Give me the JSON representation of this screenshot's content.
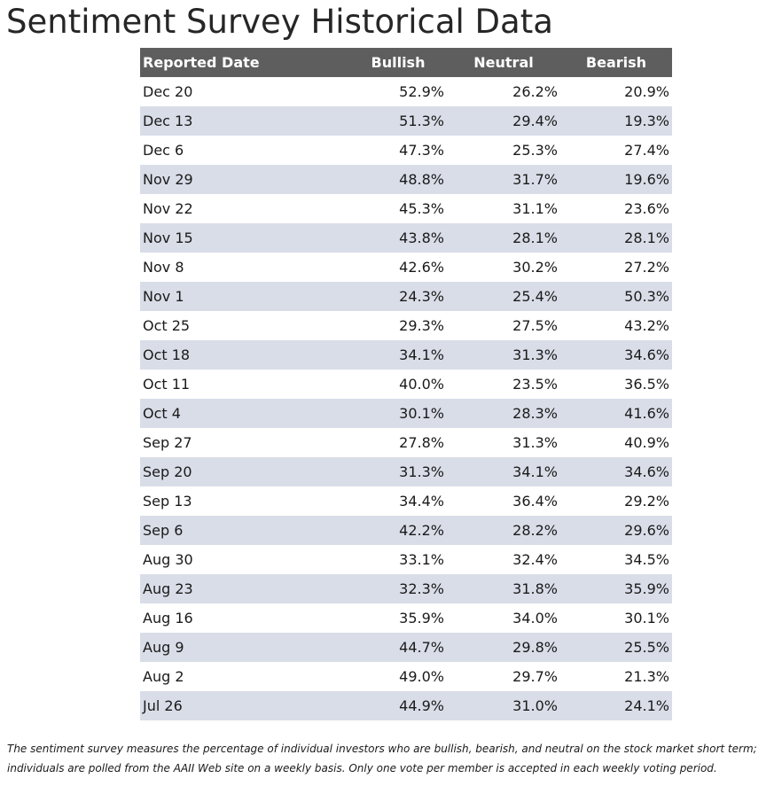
{
  "title": "Sentiment Survey Historical Data",
  "table": {
    "headers": [
      "Reported Date",
      "Bullish",
      "Neutral",
      "Bearish"
    ],
    "rows": [
      [
        "Dec 20",
        "52.9%",
        "26.2%",
        "20.9%"
      ],
      [
        "Dec 13",
        "51.3%",
        "29.4%",
        "19.3%"
      ],
      [
        "Dec 6",
        "47.3%",
        "25.3%",
        "27.4%"
      ],
      [
        "Nov 29",
        "48.8%",
        "31.7%",
        "19.6%"
      ],
      [
        "Nov 22",
        "45.3%",
        "31.1%",
        "23.6%"
      ],
      [
        "Nov 15",
        "43.8%",
        "28.1%",
        "28.1%"
      ],
      [
        "Nov 8",
        "42.6%",
        "30.2%",
        "27.2%"
      ],
      [
        "Nov 1",
        "24.3%",
        "25.4%",
        "50.3%"
      ],
      [
        "Oct 25",
        "29.3%",
        "27.5%",
        "43.2%"
      ],
      [
        "Oct 18",
        "34.1%",
        "31.3%",
        "34.6%"
      ],
      [
        "Oct 11",
        "40.0%",
        "23.5%",
        "36.5%"
      ],
      [
        "Oct 4",
        "30.1%",
        "28.3%",
        "41.6%"
      ],
      [
        "Sep 27",
        "27.8%",
        "31.3%",
        "40.9%"
      ],
      [
        "Sep 20",
        "31.3%",
        "34.1%",
        "34.6%"
      ],
      [
        "Sep 13",
        "34.4%",
        "36.4%",
        "29.2%"
      ],
      [
        "Sep 6",
        "42.2%",
        "28.2%",
        "29.6%"
      ],
      [
        "Aug 30",
        "33.1%",
        "32.4%",
        "34.5%"
      ],
      [
        "Aug 23",
        "32.3%",
        "31.8%",
        "35.9%"
      ],
      [
        "Aug 16",
        "35.9%",
        "34.0%",
        "30.1%"
      ],
      [
        "Aug 9",
        "44.7%",
        "29.8%",
        "25.5%"
      ],
      [
        "Aug 2",
        "49.0%",
        "29.7%",
        "21.3%"
      ],
      [
        "Jul 26",
        "44.9%",
        "31.0%",
        "24.1%"
      ]
    ]
  },
  "footnote": {
    "line1": "The sentiment survey measures the percentage of individual investors who are bullish, bearish, and neutral on the stock market short term;",
    "line2": "individuals are polled from the AAII Web site on a weekly basis. Only one vote per member is accepted in each weekly voting period."
  },
  "colors": {
    "header_bg": "#5e5e5e",
    "header_text": "#ffffff",
    "stripe_bg": "#d9dde8",
    "body_text": "#1a1a1a"
  }
}
